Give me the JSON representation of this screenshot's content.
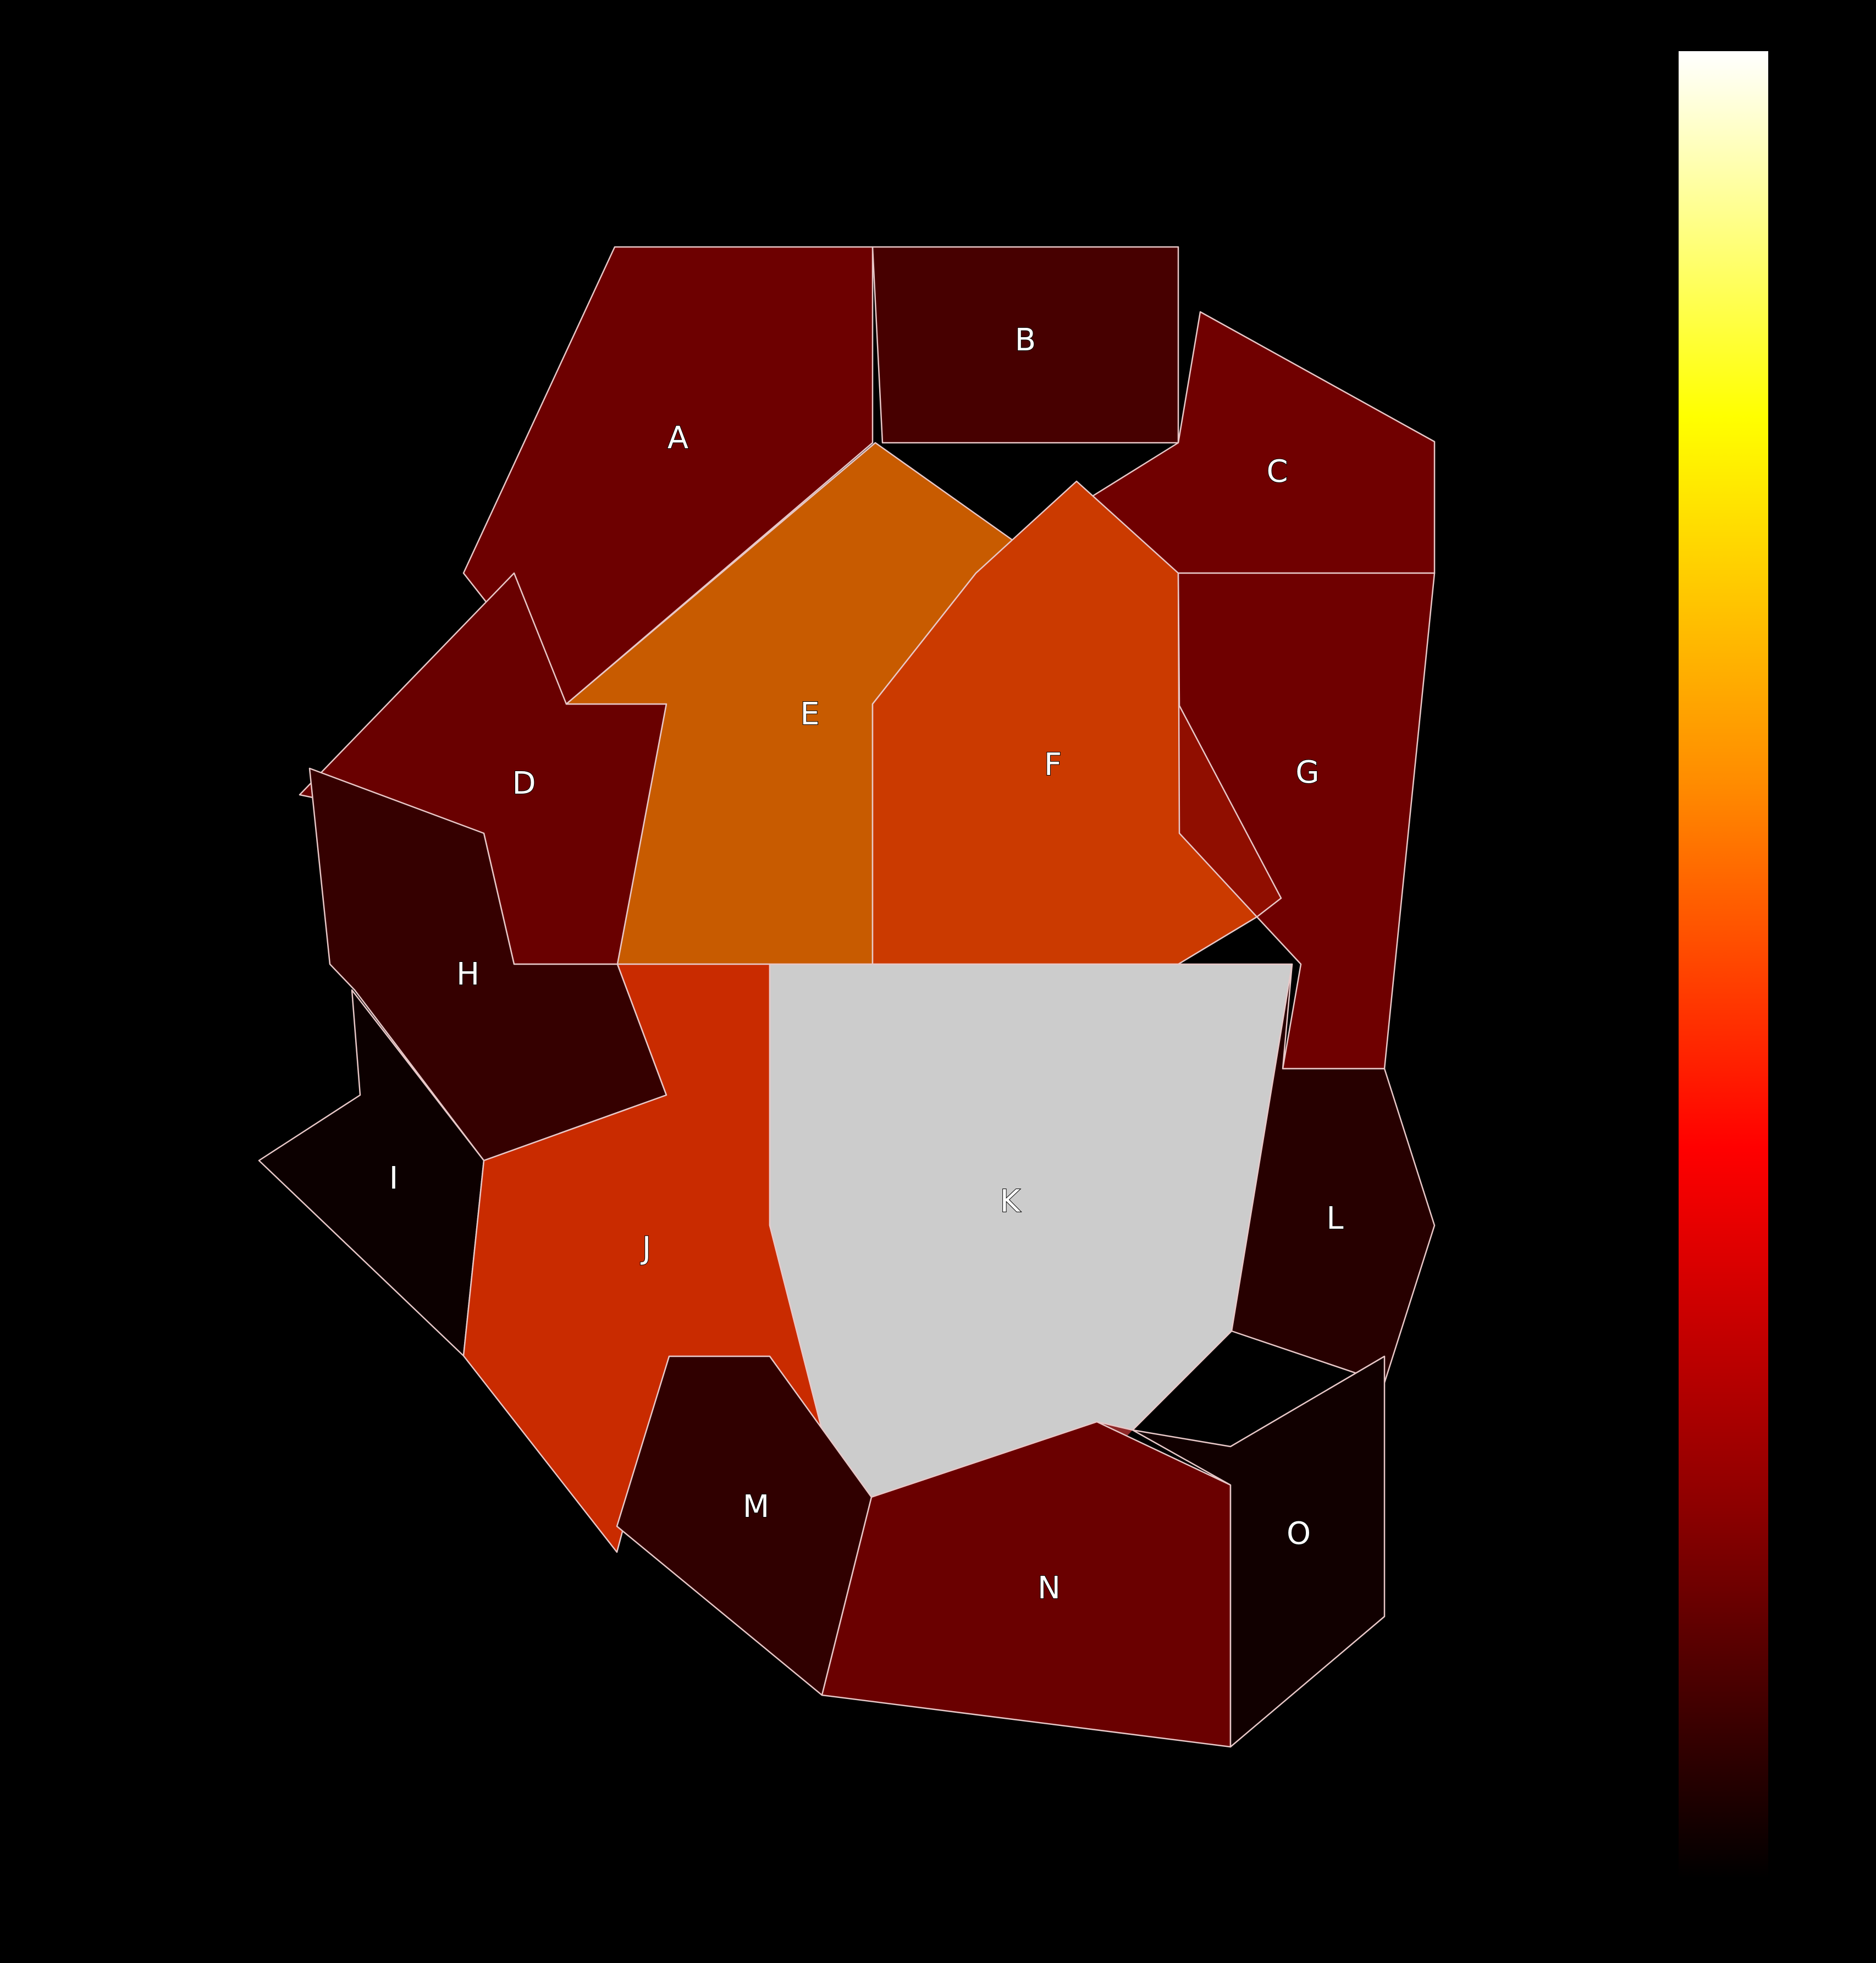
{
  "regions": [
    {
      "id": "A",
      "label": "A",
      "color": "#6d0000"
    },
    {
      "id": "B",
      "label": "B",
      "color": "#470000"
    },
    {
      "id": "C",
      "label": "C",
      "color": "#700000"
    },
    {
      "id": "D",
      "label": "D",
      "color": "#690000"
    },
    {
      "id": "E",
      "label": "E",
      "color": "#c85b00"
    },
    {
      "id": "F",
      "label": "F",
      "color": "#cb3a00"
    },
    {
      "id": "G",
      "label": "G",
      "color": "#6f0000"
    },
    {
      "id": "H",
      "label": "H",
      "color": "#350000"
    },
    {
      "id": "I",
      "label": "I",
      "color": "#0c0000"
    },
    {
      "id": "J",
      "label": "J",
      "color": "#c92b00"
    },
    {
      "id": "K",
      "label": "K",
      "color": "#cccccc"
    },
    {
      "id": "L",
      "label": "L",
      "color": "#270000"
    },
    {
      "id": "M",
      "label": "M",
      "color": "#300000"
    },
    {
      "id": "N",
      "label": "N",
      "color": "#6a0000"
    },
    {
      "id": "O",
      "label": "O",
      "color": "#110000"
    }
  ],
  "colorbar": {
    "colormap": "hot",
    "stops": [
      "#000000",
      "#8b0000",
      "#ff0000",
      "#ff8c00",
      "#ffff00",
      "#ffffff"
    ]
  }
}
